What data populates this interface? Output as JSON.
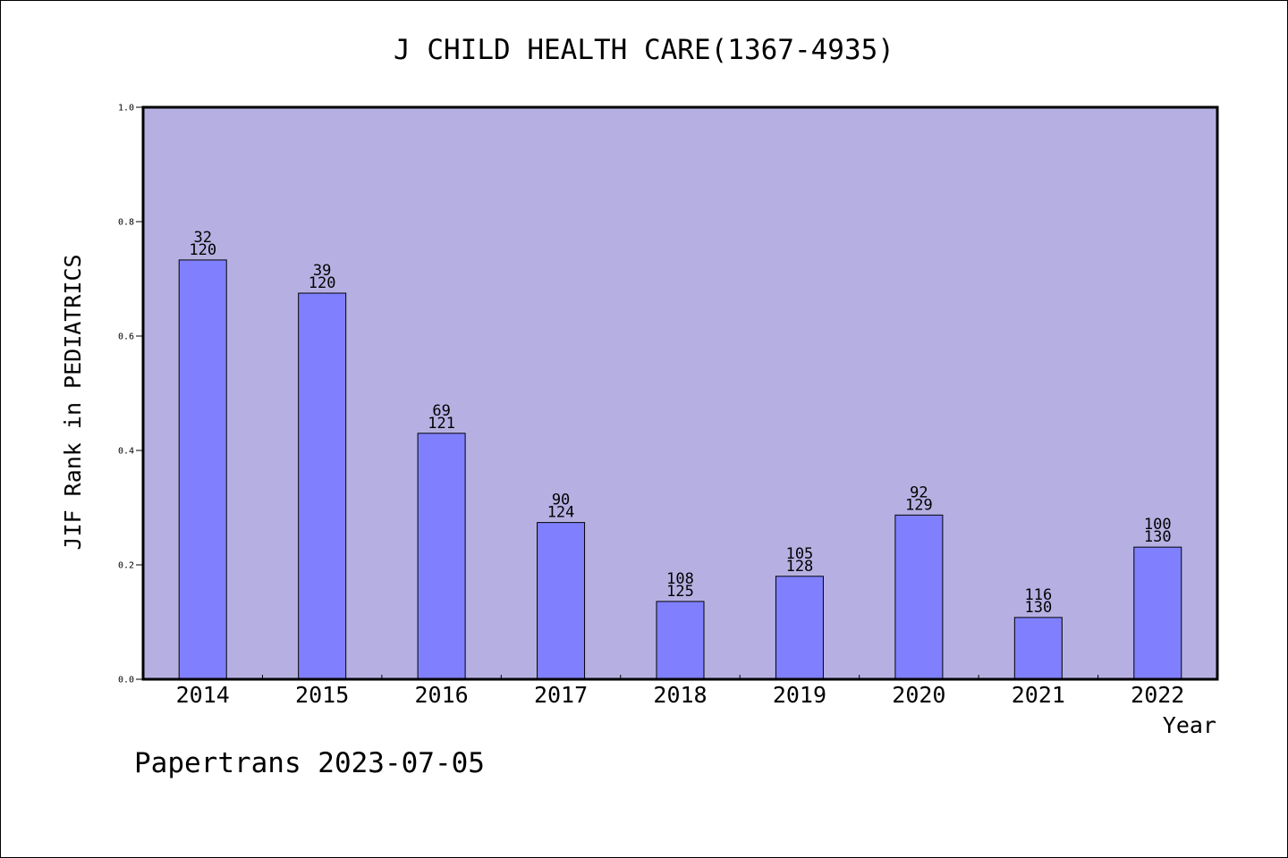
{
  "chart_data": {
    "type": "bar",
    "title": "J CHILD HEALTH CARE(1367-4935)",
    "xlabel": "Year",
    "ylabel": "JIF Rank in PEDIATRICS",
    "ylim": [
      0,
      1.0
    ],
    "yticks": [
      "0.0",
      "0.2",
      "0.4",
      "0.6",
      "0.8",
      "1.0"
    ],
    "categories": [
      "2014",
      "2015",
      "2016",
      "2017",
      "2018",
      "2019",
      "2020",
      "2021",
      "2022"
    ],
    "values": [
      0.733,
      0.675,
      0.43,
      0.274,
      0.136,
      0.18,
      0.287,
      0.108,
      0.231
    ],
    "label_top": [
      "32",
      "39",
      "69",
      "90",
      "108",
      "105",
      "92",
      "116",
      "100"
    ],
    "label_bottom": [
      "120",
      "120",
      "121",
      "124",
      "125",
      "128",
      "129",
      "130",
      "130"
    ],
    "grid": false,
    "legend": "none",
    "colors": {
      "plot_background": "#b6b0e2",
      "bar_fill": "#8080ff",
      "bar_stroke": "#000000",
      "text": "#000000"
    }
  },
  "footer": {
    "credit": "Papertrans 2023-07-05"
  }
}
